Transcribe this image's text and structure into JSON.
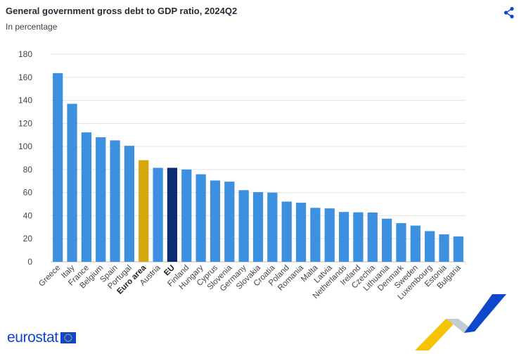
{
  "header": {
    "title": "General government gross debt to GDP ratio, 2024Q2",
    "subtitle": "In percentage"
  },
  "icons": {
    "share": "share-icon",
    "flag": "eu-flag-icon"
  },
  "brand": {
    "text": "eurostat"
  },
  "colors": {
    "default_bar": "#3d8fe0",
    "euro_area_bar": "#d6a70c",
    "eu_bar": "#0b2b74",
    "grid": "#e4e4e4",
    "axis_text": "#444444",
    "brand_blue": "#0e47cb",
    "accent_yellow": "#f5c300"
  },
  "chart_data": {
    "type": "bar",
    "title": "General government gross debt to GDP ratio, 2024Q2",
    "subtitle": "In percentage",
    "xlabel": "",
    "ylabel": "",
    "ylim": [
      0,
      180
    ],
    "yticks": [
      0,
      20,
      40,
      60,
      80,
      100,
      120,
      140,
      160,
      180
    ],
    "grid": true,
    "legend": "none",
    "categories": [
      "Greece",
      "Italy",
      "France",
      "Belgium",
      "Spain",
      "Portugal",
      "Euro area",
      "Austria",
      "EU",
      "Finland",
      "Hungary",
      "Cyprus",
      "Slovenia",
      "Germany",
      "Slovakia",
      "Croatia",
      "Poland",
      "Romania",
      "Malta",
      "Latvia",
      "Netherlands",
      "Ireland",
      "Czechia",
      "Lithuania",
      "Denmark",
      "Sweden",
      "Luxembourg",
      "Estonia",
      "Bulgaria"
    ],
    "values": [
      163.6,
      137.0,
      112.2,
      108.0,
      105.3,
      100.6,
      88.1,
      81.5,
      81.5,
      80.0,
      75.9,
      70.5,
      69.5,
      62.1,
      60.4,
      60.0,
      52.2,
      51.2,
      46.8,
      46.3,
      43.2,
      42.9,
      42.7,
      37.4,
      33.5,
      31.4,
      26.6,
      23.8,
      22.0
    ],
    "highlight": {
      "Euro area": "euro_area_bar",
      "EU": "eu_bar"
    },
    "bold_labels": [
      "Euro area",
      "EU"
    ]
  }
}
